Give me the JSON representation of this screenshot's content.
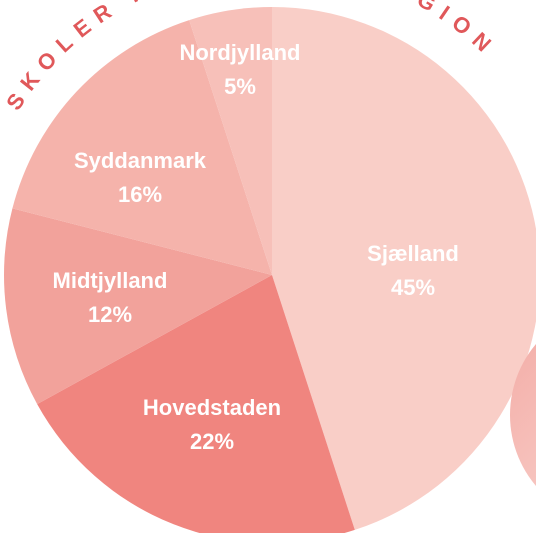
{
  "chart_data": {
    "type": "pie",
    "title": "SKOLER FORDELT PÅ REGION",
    "categories": [
      "Sjælland",
      "Hovedstaden",
      "Midtjylland",
      "Syddanmark",
      "Nordjylland"
    ],
    "values": [
      45,
      22,
      12,
      16,
      5
    ],
    "value_labels": [
      "45%",
      "22%",
      "12%",
      "16%",
      "5%"
    ],
    "colors": [
      "#f9cec7",
      "#f0857f",
      "#f2a29b",
      "#f5b3ab",
      "#f7c0b9"
    ]
  }
}
